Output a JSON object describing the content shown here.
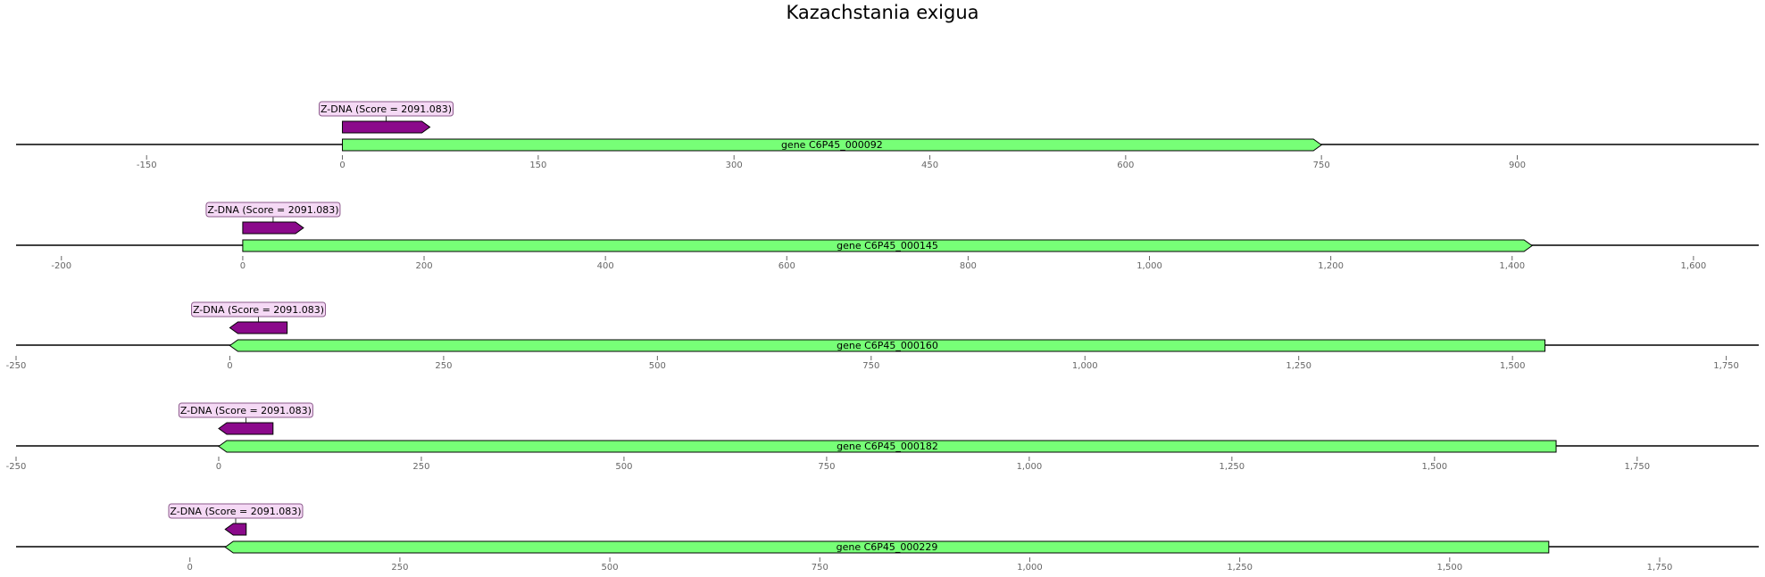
{
  "title": "Kazachstania exigua",
  "colors": {
    "gene_fill": "#77ff77",
    "zdna_fill": "#8b0a8b",
    "callout_fill": "#f5d9f5",
    "callout_border": "#8b5a8b",
    "axis_line": "#000000",
    "tick_text": "#666666"
  },
  "tracks": [
    {
      "axis_range": [
        -250,
        1085
      ],
      "ticks": [
        -150,
        0,
        150,
        300,
        450,
        600,
        750,
        900
      ],
      "tick_labels": [
        "-150",
        "0",
        "150",
        "300",
        "450",
        "600",
        "750",
        "900"
      ],
      "gene": {
        "label": "gene C6P45_000092",
        "start": 0,
        "end": 750,
        "strand": "+"
      },
      "zdna": {
        "label": "Z-DNA (Score = 2091.083)",
        "start": 0,
        "end": 67,
        "strand": "+"
      }
    },
    {
      "axis_range": [
        -250,
        1672
      ],
      "ticks": [
        -200,
        0,
        200,
        400,
        600,
        800,
        1000,
        1200,
        1400,
        1600
      ],
      "tick_labels": [
        "-200",
        "0",
        "200",
        "400",
        "600",
        "800",
        "1,000",
        "1,200",
        "1,400",
        "1,600"
      ],
      "gene": {
        "label": "gene C6P45_000145",
        "start": 0,
        "end": 1422,
        "strand": "+"
      },
      "zdna": {
        "label": "Z-DNA (Score = 2091.083)",
        "start": 0,
        "end": 67,
        "strand": "+"
      }
    },
    {
      "axis_range": [
        -250,
        1788
      ],
      "ticks": [
        -250,
        0,
        250,
        500,
        750,
        1000,
        1250,
        1500,
        1750
      ],
      "tick_labels": [
        "-250",
        "0",
        "250",
        "500",
        "750",
        "1,000",
        "1,250",
        "1,500",
        "1,750"
      ],
      "gene": {
        "label": "gene C6P45_000160",
        "start": 0,
        "end": 1538,
        "strand": "-"
      },
      "zdna": {
        "label": "Z-DNA (Score = 2091.083)",
        "start": 0,
        "end": 67,
        "strand": "-"
      }
    },
    {
      "axis_range": [
        -250,
        1900
      ],
      "ticks": [
        -250,
        0,
        250,
        500,
        750,
        1000,
        1250,
        1500,
        1750
      ],
      "tick_labels": [
        "-250",
        "0",
        "250",
        "500",
        "750",
        "1,000",
        "1,250",
        "1,500",
        "1,750"
      ],
      "gene": {
        "label": "gene C6P45_000182",
        "start": 0,
        "end": 1650,
        "strand": "-"
      },
      "zdna": {
        "label": "Z-DNA (Score = 2091.083)",
        "start": 0,
        "end": 67,
        "strand": "-"
      }
    },
    {
      "axis_range": [
        -207,
        1868
      ],
      "ticks": [
        0,
        250,
        500,
        750,
        1000,
        1250,
        1500,
        1750
      ],
      "tick_labels": [
        "0",
        "250",
        "500",
        "750",
        "1,000",
        "1,250",
        "1,500",
        "1,750"
      ],
      "gene": {
        "label": "gene C6P45_000229",
        "start": 42,
        "end": 1618,
        "strand": "-"
      },
      "zdna": {
        "label": "Z-DNA (Score = 2091.083)",
        "start": 42,
        "end": 67,
        "strand": "-"
      }
    }
  ]
}
